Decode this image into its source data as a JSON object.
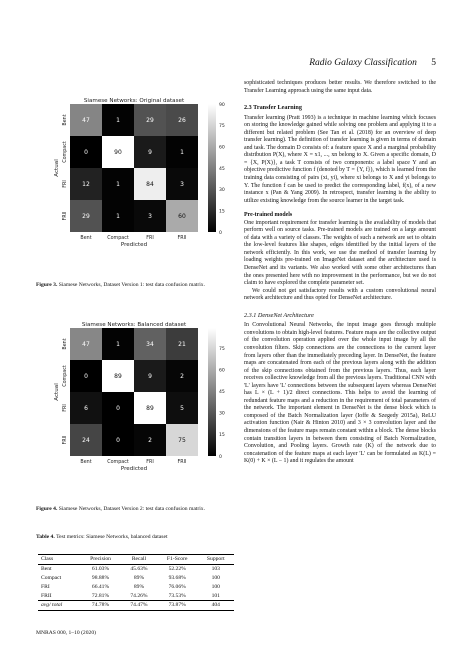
{
  "header": {
    "title": "Radio Galaxy Classification",
    "page": "5"
  },
  "charts": [
    {
      "title": "Siamese Networks: Original dataset",
      "xlabel": "Predicted",
      "ylabel": "Actual",
      "x_ticks": [
        "Bent",
        "Compact",
        "FRI",
        "FRII"
      ],
      "y_ticks": [
        "Bent",
        "Compact",
        "FRI",
        "FRII"
      ],
      "colorbar_ticks": [
        "90",
        "75",
        "60",
        "45",
        "30",
        "15",
        "0"
      ],
      "cells": [
        [
          "47",
          "1",
          "29",
          "26"
        ],
        [
          "0",
          "90",
          "9",
          "1"
        ],
        [
          "12",
          "1",
          "84",
          "3"
        ],
        [
          "29",
          "1",
          "3",
          "60"
        ]
      ]
    },
    {
      "title": "Siamese Networks: Balanced dataset",
      "xlabel": "Predicted",
      "ylabel": "Actual",
      "x_ticks": [
        "Bent",
        "Compact",
        "FRI",
        "FRII"
      ],
      "y_ticks": [
        "Bent",
        "Compact",
        "FRI",
        "FRII"
      ],
      "colorbar_ticks": [
        "75",
        "60",
        "45",
        "30",
        "15",
        "0"
      ],
      "cells": [
        [
          "47",
          "1",
          "34",
          "21"
        ],
        [
          "0",
          "89",
          "9",
          "2"
        ],
        [
          "6",
          "0",
          "89",
          "5"
        ],
        [
          "24",
          "0",
          "2",
          "75"
        ]
      ]
    }
  ],
  "chart_data": [
    {
      "type": "heatmap",
      "title": "Siamese Networks: Original dataset",
      "xlabel": "Predicted",
      "ylabel": "Actual",
      "x": [
        "Bent",
        "Compact",
        "FRI",
        "FRII"
      ],
      "y": [
        "Bent",
        "Compact",
        "FRI",
        "FRII"
      ],
      "values": [
        [
          47,
          1,
          29,
          26
        ],
        [
          0,
          90,
          9,
          1
        ],
        [
          12,
          1,
          84,
          3
        ],
        [
          29,
          1,
          3,
          60
        ]
      ],
      "colorbar_range": [
        0,
        90
      ]
    },
    {
      "type": "heatmap",
      "title": "Siamese Networks: Balanced dataset",
      "xlabel": "Predicted",
      "ylabel": "Actual",
      "x": [
        "Bent",
        "Compact",
        "FRI",
        "FRII"
      ],
      "y": [
        "Bent",
        "Compact",
        "FRI",
        "FRII"
      ],
      "values": [
        [
          47,
          1,
          34,
          21
        ],
        [
          0,
          89,
          9,
          2
        ],
        [
          6,
          0,
          89,
          5
        ],
        [
          24,
          0,
          2,
          75
        ]
      ],
      "colorbar_range": [
        0,
        89
      ]
    }
  ],
  "captions": {
    "fig3_label": "Figure 3.",
    "fig3_text": " Siamese Networks, Dataset Version 1: test data confusion matrix.",
    "fig4_label": "Figure 4.",
    "fig4_text": " Siamese Networks, Dataset Version 2: test data confusion matrix.",
    "table4_label": "Table 4.",
    "table4_text": " Test metrics: Siamese Networks, balanced dataset"
  },
  "table": {
    "headers": [
      "Class",
      "Precision",
      "Recall",
      "F1-Score",
      "Support"
    ],
    "rows": [
      [
        "Bent",
        "61.03%",
        "45.63%",
        "52.22%",
        "103"
      ],
      [
        "Compact",
        "98.88%",
        "89%",
        "93.68%",
        "100"
      ],
      [
        "FRI",
        "66.41%",
        "89%",
        "76.06%",
        "100"
      ],
      [
        "FRII",
        "72.81%",
        "74.26%",
        "73.53%",
        "101"
      ]
    ],
    "avg": [
      "avg/ total",
      "74.78%",
      "74.47%",
      "73.87%",
      "404"
    ]
  },
  "text": {
    "intro": "sophisticated techniques produces better results. We therefore switched to the Transfer Learning approach using the same input data.",
    "sec23": "2.3   Transfer Learning",
    "tl_para": "Transfer learning (Pratt 1993) is a technique in machine learning which focuses on storing the knowledge gained while solving one problem and applying it to a different but related problem (See Tan et al. (2018) for an overview of deep transfer learning). The definition of transfer learning is given in terms of domain and task. The domain D consists of: a feature space X and a marginal probability distribution P(X), where X = x1, ..., xn belong to X. Given a specific domain, D = {X, P(X)}, a task T consists of two components: a label space Y and an objective predictive function f (denoted by T = {Y, f}), which is learned from the training data consisting of pairs (xi, yi), where xi belongs to X and yi belongs to Y. The function f can be used to predict the corresponding label, f(x), of a new instance x (Pan & Yang 2009). In retrospect, transfer learning is the ability to utilize existing knowledge from the source learner in the target task.",
    "pretrained_head": "Pre-trained models",
    "pretrained_para": "One important requirement for transfer learning is the availability of models that perform well on source tasks. Pre-trained models are trained on a large amount of data with a variety of classes. The weights of such a network are set to obtain the low-level features like shapes, edges identified by the initial layers of the network efficiently. In this work, we use the method of transfer learning by loading weights pre-trained on ImageNet dataset and the architecture used is DenseNet and its variants. We also worked with some other architectures than the ones presented here with no improvement in the performance, but we do not claim to have explored the complete parameter set.",
    "pretrained_para2": "We could not get satisfactory results with a custom convolutional neural network architecture and thus opted for DenseNet architecture.",
    "sec231": "2.3.1   DenseNet Architecture",
    "densenet_para": "In Convolutional Neural Networks, the input image goes through multiple convolutions to obtain high-level features. Feature maps are the collective output of the convolution operation applied over the whole input image by all the convolution filters. Skip connections are the connections to the current layer from layers other than the immediately preceding layer. In DenseNet, the feature maps are concatenated from each of the previous layers along with the addition of the skip connections obtained from the previous layers. Thus, each layer receives collective knowledge from all the previous layers. Traditional CNN with 'L' layers have 'L' connections between the subsequent layers whereas DenseNet has L × (L + 1)/2 direct connections. This helps to avoid the learning of redundant feature maps and a reduction in the requirement of total parameters of the network. The important element in DenseNet is the dense block which is composed of the Batch Normalization layer (Ioffe & Szegedy 2015a), ReLU activation function (Nair & Hinton 2010) and 3 × 3 convolution layer and the dimensions of the feature maps remain constant within a block. The dense blocks contain transition layers in between them consisting of Batch Normalization, Convolution, and Pooling layers. Growth rate (K) of the network due to concatenation of the feature maps at each layer 'L' can be formulated as K(L) = K(0) + K × (L − 1) and it regulates the amount"
  },
  "footer": "MNRAS 000, 1–10 (2020)"
}
